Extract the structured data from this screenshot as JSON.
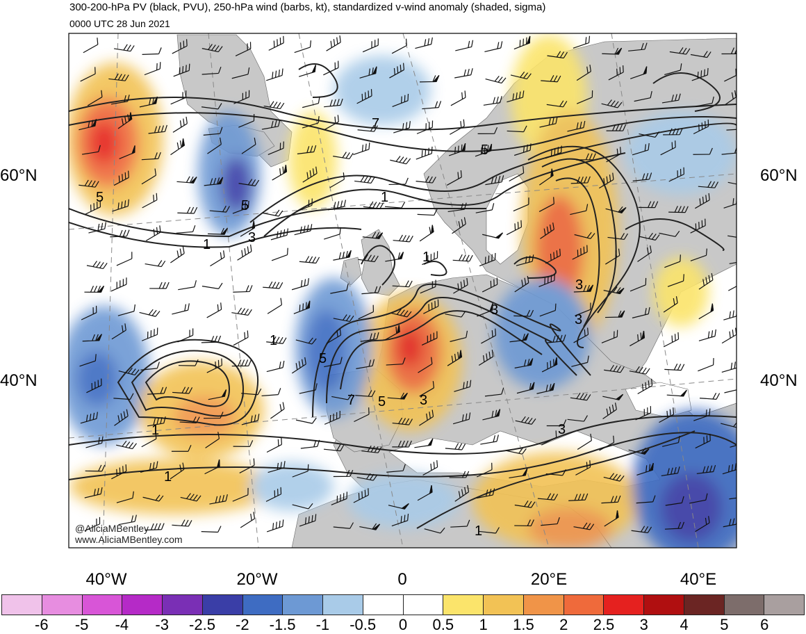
{
  "title": "300-200-hPa PV (black, PVU), 250-hPa wind (barbs, kt), standardized v-wind anomaly (shaded, sigma)",
  "valid_time": "0000 UTC 28 Jun 2021",
  "lat_labels": [
    "60°N",
    "40°N"
  ],
  "lon_labels": [
    "40°W",
    "20°W",
    "0",
    "20°E",
    "40°E"
  ],
  "credit": {
    "handle": "@AliciaMBentley",
    "site": "www.AliciaMBentley.com"
  },
  "contour_labels": [
    "7",
    "5",
    "5",
    "1",
    "3",
    "1",
    "1",
    "5",
    "3",
    "3",
    "5",
    "3",
    "7",
    "5",
    "1",
    "3",
    "1",
    "1",
    "3",
    "1"
  ],
  "colorbar": {
    "colors": [
      "#f0c2ea",
      "#e78de0",
      "#d855d7",
      "#b52ac7",
      "#7a2fb5",
      "#3a3ea7",
      "#3e6cc2",
      "#6d99d4",
      "#a9cbe8",
      "#ffffff",
      "#ffffff",
      "#fbe46b",
      "#f2c255",
      "#f09448",
      "#ef6a3b",
      "#e5211f",
      "#b00f10",
      "#6b2523",
      "#7d6d6b",
      "#a99f9f"
    ],
    "labels": [
      "-6",
      "-5",
      "-4",
      "-3",
      "-2.5",
      "-2",
      "-1.5",
      "-1",
      "-0.5",
      "0",
      "0.5",
      "1",
      "1.5",
      "2",
      "2.5",
      "3",
      "4",
      "5",
      "6"
    ]
  },
  "colors": {
    "land": "#c8c8c8",
    "ocean": "#ffffff",
    "contour": "#222222",
    "grid": "#888888"
  }
}
